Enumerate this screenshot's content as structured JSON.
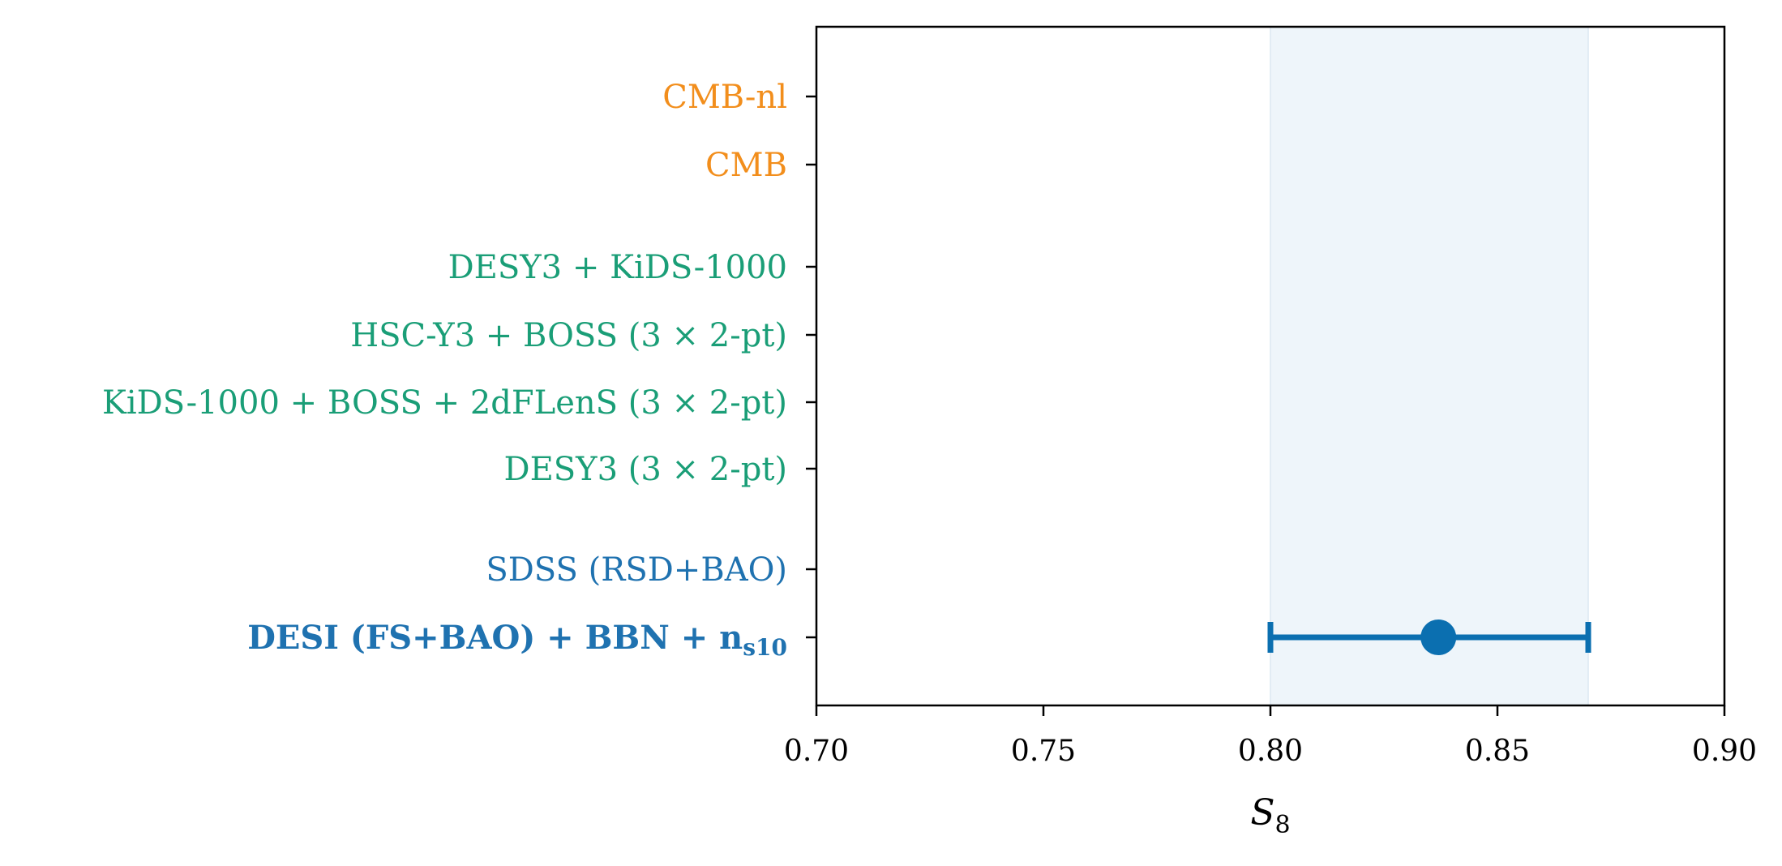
{
  "chart_data": {
    "type": "scatter",
    "title": "",
    "xlabel": "S",
    "xlabel_subscript": "8",
    "xlim": [
      0.7,
      0.9
    ],
    "xticks": [
      "0.70",
      "0.75",
      "0.80",
      "0.85",
      "0.90"
    ],
    "grid": false,
    "band": {
      "x_min": 0.8,
      "x_max": 0.87,
      "color": "#e8f1f8"
    },
    "rows": [
      {
        "label": "CMB-nl",
        "color": "#f28e1c",
        "bold": false
      },
      {
        "label": "CMB",
        "color": "#f28e1c",
        "bold": false
      },
      {
        "label": "DESY3 + KiDS-1000",
        "color": "#1a9e77",
        "bold": false
      },
      {
        "label": "HSC-Y3 + BOSS (3 × 2-pt)",
        "color": "#1a9e77",
        "bold": false
      },
      {
        "label": "KiDS-1000 + BOSS + 2dFLenS (3 × 2-pt)",
        "color": "#1a9e77",
        "bold": false
      },
      {
        "label": "DESY3 (3 × 2-pt)",
        "color": "#1a9e77",
        "bold": false
      },
      {
        "label": "SDSS (RSD+BAO)",
        "color": "#1f72b0",
        "bold": false
      },
      {
        "label": "DESI (FS+BAO) + BBN + n",
        "label_subscript": "s10",
        "color": "#1f72b0",
        "bold": true
      }
    ],
    "points": [
      {
        "row": 7,
        "x": 0.837,
        "err_low": 0.8,
        "err_high": 0.87,
        "color": "#0b6fb0"
      }
    ]
  }
}
